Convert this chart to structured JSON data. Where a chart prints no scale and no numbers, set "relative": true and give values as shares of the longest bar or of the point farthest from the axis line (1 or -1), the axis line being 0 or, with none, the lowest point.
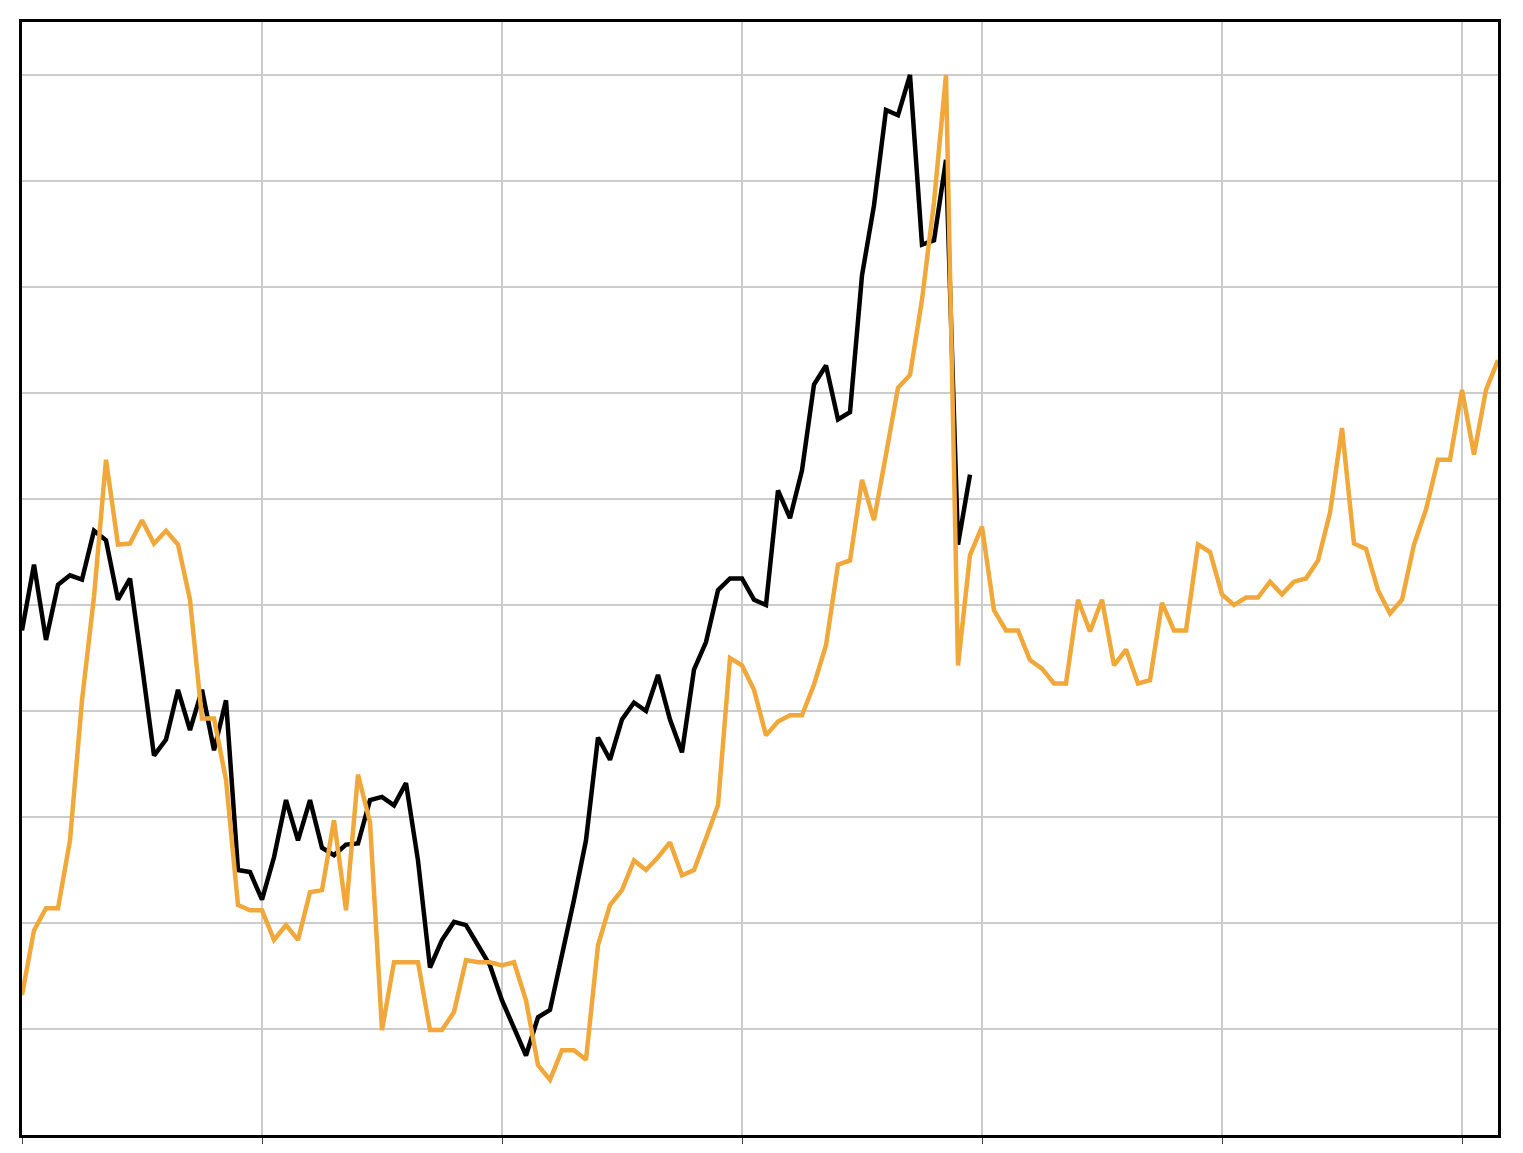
{
  "chart_data": {
    "type": "line",
    "relative": true,
    "grid": true,
    "marker": "none",
    "line_style": "solid",
    "categories": [
      null,
      null,
      null,
      null,
      null,
      null,
      null,
      null,
      null,
      null,
      null,
      null,
      null,
      null,
      null,
      null,
      null,
      null,
      null,
      null,
      null,
      null,
      null,
      null,
      null,
      null,
      null,
      null,
      null,
      null,
      null,
      null,
      null,
      null,
      null,
      null,
      null,
      null,
      null,
      null,
      null,
      null,
      null,
      null,
      null,
      null,
      null,
      null,
      null,
      null,
      null,
      null,
      null,
      null,
      null,
      null,
      null,
      null,
      null,
      null,
      null,
      null,
      null,
      null,
      null,
      null,
      null,
      null,
      null,
      null,
      null,
      null,
      null,
      null,
      null,
      null,
      null,
      null,
      null,
      null,
      null,
      null,
      null,
      null,
      null,
      null,
      null,
      null,
      null,
      null,
      null,
      null,
      null,
      null,
      null,
      null,
      null,
      null,
      null,
      null,
      null,
      null,
      null,
      null,
      null,
      null,
      null,
      null,
      null,
      null,
      null,
      null,
      null,
      null,
      null,
      null,
      null,
      null,
      null,
      null,
      null,
      null,
      null,
      null
    ],
    "series": [
      {
        "color": "#000000",
        "values": [
          0.476,
          0.538,
          0.467,
          0.519,
          0.528,
          0.524,
          0.57,
          0.561,
          0.505,
          0.525,
          0.443,
          0.358,
          0.373,
          0.42,
          0.382,
          0.42,
          0.363,
          0.41,
          0.25,
          0.248,
          0.222,
          0.262,
          0.316,
          0.278,
          0.316,
          0.271,
          0.264,
          0.274,
          0.275,
          0.316,
          0.319,
          0.311,
          0.332,
          0.259,
          0.158,
          0.184,
          0.201,
          0.198,
          0.179,
          0.16,
          0.127,
          0.101,
          0.075,
          0.111,
          0.118,
          0.17,
          0.222,
          0.278,
          0.375,
          0.354,
          0.392,
          0.408,
          0.4,
          0.434,
          0.392,
          0.361,
          0.439,
          0.465,
          0.514,
          0.525,
          0.525,
          0.505,
          0.5,
          0.608,
          0.582,
          0.627,
          0.708,
          0.726,
          0.675,
          0.682,
          0.811,
          0.877,
          0.967,
          0.962,
          1.0,
          0.84,
          0.844,
          0.92,
          0.557,
          0.623,
          null,
          null,
          null,
          null,
          null,
          null,
          null,
          null,
          null,
          null,
          null,
          null,
          null,
          null,
          null,
          null,
          null,
          null,
          null,
          null,
          null,
          null,
          null,
          null,
          null,
          null,
          null,
          null,
          null,
          null,
          null,
          null,
          null,
          null,
          null,
          null,
          null,
          null,
          null,
          null,
          null,
          null,
          null,
          null
        ]
      },
      {
        "color": "#f0a83a",
        "values": [
          0.132,
          0.193,
          0.214,
          0.214,
          0.278,
          0.41,
          0.508,
          0.637,
          0.557,
          0.558,
          0.58,
          0.558,
          0.57,
          0.557,
          0.505,
          0.393,
          0.393,
          0.335,
          0.217,
          0.212,
          0.212,
          0.184,
          0.198,
          0.184,
          0.229,
          0.231,
          0.297,
          0.212,
          0.34,
          0.295,
          0.099,
          0.163,
          0.163,
          0.163,
          0.099,
          0.099,
          0.116,
          0.165,
          0.163,
          0.163,
          0.16,
          0.163,
          0.127,
          0.066,
          0.052,
          0.08,
          0.08,
          0.071,
          0.179,
          0.217,
          0.231,
          0.259,
          0.25,
          0.262,
          0.276,
          0.245,
          0.25,
          0.28,
          0.311,
          0.45,
          0.443,
          0.42,
          0.377,
          0.39,
          0.396,
          0.396,
          0.425,
          0.462,
          0.538,
          0.542,
          0.618,
          0.58,
          0.642,
          0.705,
          0.717,
          0.788,
          0.88,
          1.0,
          0.443,
          0.547,
          0.574,
          0.495,
          0.476,
          0.476,
          0.448,
          0.44,
          0.426,
          0.426,
          0.505,
          0.475,
          0.505,
          0.443,
          0.458,
          0.426,
          0.429,
          0.502,
          0.476,
          0.476,
          0.557,
          0.55,
          0.51,
          0.5,
          0.507,
          0.507,
          0.522,
          0.51,
          0.522,
          0.525,
          0.542,
          0.587,
          0.667,
          0.558,
          0.553,
          0.514,
          0.492,
          0.505,
          0.557,
          0.59,
          0.637,
          0.637,
          0.703,
          0.642,
          0.703,
          0.731
        ]
      }
    ]
  }
}
